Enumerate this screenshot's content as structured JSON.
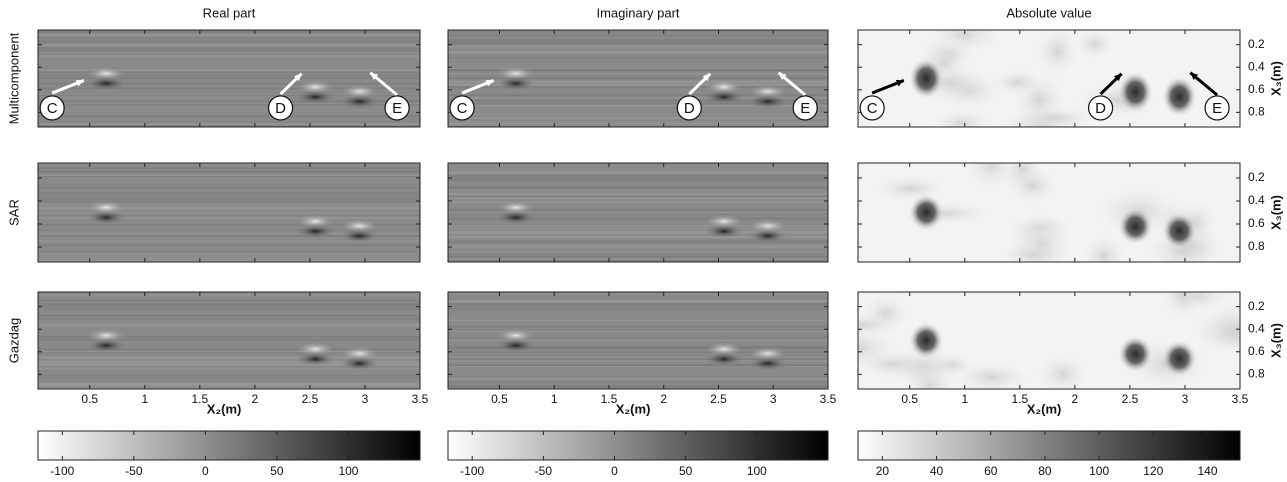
{
  "columns": [
    {
      "title": "Real part",
      "colorbar": {
        "clim": [
          -117,
          150
        ],
        "ticks": [
          -100,
          -50,
          0,
          50,
          100
        ]
      }
    },
    {
      "title": "Imaginary part",
      "colorbar": {
        "clim": [
          -117,
          150
        ],
        "ticks": [
          -100,
          -50,
          0,
          50,
          100
        ]
      }
    },
    {
      "title": "Absolute value",
      "colorbar": {
        "clim": [
          11,
          152
        ],
        "ticks": [
          20,
          40,
          60,
          80,
          100,
          120,
          140
        ]
      }
    }
  ],
  "rows": [
    "Multicomponent",
    "SAR",
    "Gazdag"
  ],
  "x_axis": {
    "label": "X₂(m)",
    "xlim": [
      0.03,
      3.5
    ],
    "ticks": [
      0.5,
      1,
      1.5,
      2,
      2.5,
      3,
      3.5
    ]
  },
  "y_axis": {
    "label": "X₃(m)",
    "ylim": [
      0.07,
      0.93
    ],
    "ticks": [
      0.2,
      0.4,
      0.6,
      0.8
    ]
  },
  "annotations": [
    "C",
    "D",
    "E"
  ]
}
